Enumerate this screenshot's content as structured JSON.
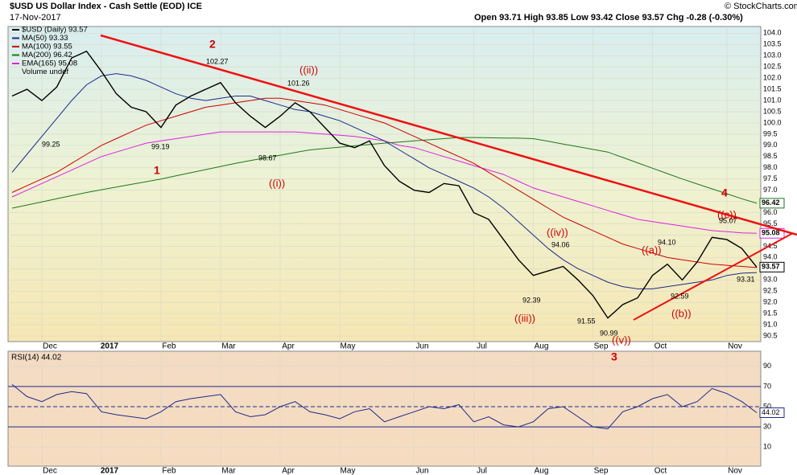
{
  "header": {
    "title": "$USD US Dollar Index - Cash Settle (EOD) ICE",
    "date": "17-Nov-2017",
    "quote": "Open 93.71 High 93.85 Low 93.42 Close 93.57 Chg -0.28 (-0.30%)",
    "credit": "© StockCharts.com"
  },
  "chart_data": [
    {
      "type": "line",
      "categories": [
        null,
        null,
        "Dec",
        null,
        null,
        null,
        "2017",
        null,
        null,
        null,
        "Feb",
        null,
        null,
        null,
        "Mar",
        null,
        null,
        null,
        "Apr",
        null,
        null,
        null,
        "May",
        null,
        null,
        null,
        null,
        "Jun",
        null,
        null,
        null,
        "Jul",
        null,
        null,
        null,
        "Aug",
        null,
        null,
        null,
        "Sep",
        null,
        null,
        null,
        "Oct",
        null,
        null,
        null,
        null,
        "Nov",
        null,
        null
      ],
      "series": [
        {
          "name": "$USD (Daily) 93.57",
          "color": "#000000",
          "width": 1.4,
          "values": [
            101.2,
            101.5,
            101.0,
            101.6,
            102.9,
            103.2,
            102.3,
            101.3,
            100.7,
            100.5,
            99.8,
            100.8,
            101.2,
            101.5,
            101.8,
            100.9,
            100.3,
            99.8,
            100.3,
            100.9,
            100.5,
            99.8,
            99.1,
            98.9,
            99.2,
            98.1,
            97.4,
            97.0,
            96.9,
            97.3,
            97.2,
            96.0,
            95.7,
            94.8,
            93.9,
            93.2,
            93.4,
            93.6,
            93.0,
            92.3,
            91.3,
            91.9,
            92.2,
            93.2,
            93.7,
            93.0,
            93.8,
            94.9,
            94.8,
            94.4,
            93.57
          ]
        },
        {
          "name": "MA(50) 93.33",
          "color": "#1c2a8c",
          "width": 1,
          "values": [
            97.8,
            98.6,
            99.4,
            100.2,
            101.0,
            101.7,
            102.1,
            102.2,
            102.1,
            101.9,
            101.6,
            101.3,
            101.1,
            101.0,
            101.1,
            101.2,
            101.2,
            101.0,
            100.8,
            100.6,
            100.5,
            100.3,
            100.1,
            99.8,
            99.5,
            99.2,
            98.8,
            98.4,
            98.0,
            97.7,
            97.4,
            97.1,
            96.7,
            96.2,
            95.6,
            95.0,
            94.4,
            93.9,
            93.5,
            93.2,
            92.9,
            92.7,
            92.6,
            92.6,
            92.7,
            92.8,
            92.9,
            93.0,
            93.2,
            93.3,
            93.33
          ]
        },
        {
          "name": "MA(100) 93.55",
          "color": "#cc0000",
          "width": 1,
          "values": [
            96.9,
            97.2,
            97.5,
            97.8,
            98.2,
            98.6,
            99.0,
            99.3,
            99.6,
            99.9,
            100.1,
            100.3,
            100.5,
            100.7,
            100.8,
            100.9,
            101.0,
            101.1,
            101.1,
            101.0,
            100.9,
            100.8,
            100.6,
            100.4,
            100.2,
            100.0,
            99.7,
            99.4,
            99.1,
            98.8,
            98.5,
            98.2,
            97.8,
            97.4,
            97.0,
            96.6,
            96.2,
            95.8,
            95.5,
            95.2,
            94.9,
            94.6,
            94.4,
            94.2,
            94.0,
            93.9,
            93.8,
            93.7,
            93.65,
            93.6,
            93.55
          ]
        },
        {
          "name": "MA(200) 96.42",
          "color": "#1a7a1a",
          "width": 1,
          "values": [
            96.2,
            96.34,
            96.48,
            96.62,
            96.76,
            96.9,
            97.02,
            97.14,
            97.26,
            97.38,
            97.5,
            97.64,
            97.78,
            97.92,
            98.06,
            98.2,
            98.32,
            98.44,
            98.56,
            98.68,
            98.8,
            98.86,
            98.92,
            98.98,
            99.04,
            99.1,
            99.15,
            99.2,
            99.25,
            99.3,
            99.35,
            99.35,
            99.34,
            99.33,
            99.32,
            99.3,
            99.18,
            99.06,
            98.94,
            98.82,
            98.7,
            98.46,
            98.22,
            97.98,
            97.74,
            97.5,
            97.28,
            97.06,
            96.84,
            96.62,
            96.42
          ]
        },
        {
          "name": "EMA(165) 95.08",
          "color": "#e020e0",
          "width": 1,
          "values": [
            96.7,
            97.0,
            97.3,
            97.6,
            97.9,
            98.2,
            98.5,
            98.7,
            98.9,
            99.1,
            99.2,
            99.3,
            99.4,
            99.5,
            99.6,
            99.6,
            99.6,
            99.6,
            99.6,
            99.6,
            99.55,
            99.5,
            99.45,
            99.4,
            99.3,
            99.2,
            99.0,
            98.9,
            98.7,
            98.5,
            98.3,
            98.1,
            97.9,
            97.7,
            97.4,
            97.1,
            96.9,
            96.7,
            96.5,
            96.3,
            96.1,
            95.9,
            95.7,
            95.6,
            95.5,
            95.4,
            95.3,
            95.2,
            95.15,
            95.1,
            95.08
          ]
        }
      ],
      "legend_extra": "Volume undef",
      "price_tags": [
        "96.42",
        "95.08",
        "93.57"
      ],
      "ylim": [
        90.25,
        104.3
      ],
      "yticks": [
        {
          "value": 90.5,
          "label": "90.5"
        },
        {
          "value": 91,
          "label": "91.0"
        },
        {
          "value": 91.5,
          "label": "91.5"
        },
        {
          "value": 92,
          "label": "92.0"
        },
        {
          "value": 92.5,
          "label": "92.5"
        },
        {
          "value": 93,
          "label": "93.0"
        },
        {
          "value": 93.5,
          "label": "93.5"
        },
        {
          "value": 94,
          "label": "94.0"
        },
        {
          "value": 94.5,
          "label": "94.5"
        },
        {
          "value": 95,
          "label": "95.0"
        },
        {
          "value": 95.5,
          "label": "95.5"
        },
        {
          "value": 96,
          "label": "96.0"
        },
        {
          "value": 96.5,
          "label": "96.5"
        },
        {
          "value": 97,
          "label": "97.0"
        },
        {
          "value": 97.5,
          "label": "97.5"
        },
        {
          "value": 98,
          "label": "98.0"
        },
        {
          "value": 98.5,
          "label": "98.5"
        },
        {
          "value": 99,
          "label": "99.0"
        },
        {
          "value": 99.5,
          "label": "99.5"
        },
        {
          "value": 100,
          "label": "100.0"
        },
        {
          "value": 100.5,
          "label": "100.5"
        },
        {
          "value": 101,
          "label": "101.0"
        },
        {
          "value": 101.5,
          "label": "101.5"
        },
        {
          "value": 102,
          "label": "102.0"
        },
        {
          "value": 102.5,
          "label": "102.5"
        },
        {
          "value": 103,
          "label": "103.0"
        },
        {
          "value": 103.5,
          "label": "103.5"
        },
        {
          "value": 104,
          "label": "104.0"
        }
      ],
      "annotations": [
        "2",
        "((ii))",
        "1",
        "((i))",
        "((iv))",
        "((iii))",
        "((v))",
        "3",
        "((a))",
        "((b))",
        "((c))",
        "4",
        "102.27",
        "101.26",
        "99.25",
        "99.19",
        "98.67",
        "94.06",
        "92.39",
        "91.55",
        "90.99",
        "94.10",
        "92.59",
        "95.07",
        "93.31"
      ]
    },
    {
      "type": "line",
      "title": "RSI(14) 44.02",
      "series": [
        {
          "name": "RSI(14)",
          "color": "#1c2a8c",
          "values": [
            72,
            60,
            55,
            62,
            65,
            63,
            45,
            42,
            40,
            38,
            45,
            55,
            58,
            60,
            62,
            45,
            40,
            42,
            50,
            55,
            45,
            42,
            38,
            45,
            48,
            35,
            40,
            45,
            50,
            48,
            52,
            35,
            40,
            32,
            30,
            35,
            48,
            50,
            40,
            30,
            28,
            45,
            50,
            58,
            62,
            50,
            55,
            68,
            63,
            55,
            44.02
          ]
        }
      ],
      "last_tag": "44.02",
      "ylim": [
        -9,
        105
      ],
      "yticks": [
        10,
        30,
        50,
        70,
        90
      ],
      "levels": [
        30,
        50,
        70
      ]
    }
  ]
}
